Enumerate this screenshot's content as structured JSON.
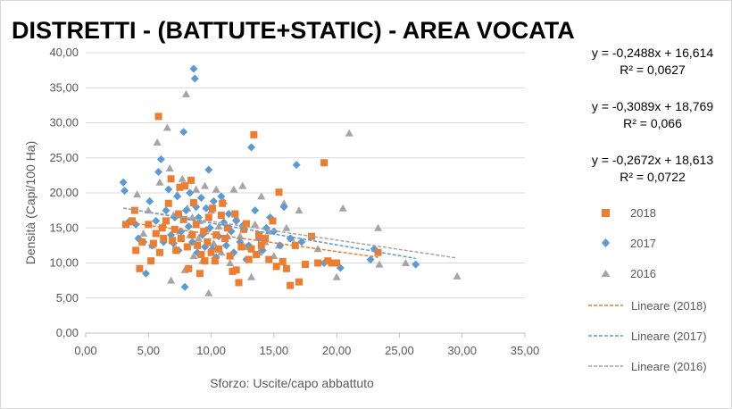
{
  "chart_data": {
    "type": "scatter",
    "title": "DISTRETTI - (BATTUTE+STATIC) - AREA VOCATA",
    "xlabel": "Sforzo: Uscite/capo abbattuto",
    "ylabel": "Densità (Capi/100 Ha)",
    "xlim": [
      0,
      35
    ],
    "ylim": [
      0,
      40
    ],
    "x_ticks": [
      "0,00",
      "5,00",
      "10,00",
      "15,00",
      "20,00",
      "25,00",
      "30,00",
      "35,00"
    ],
    "y_ticks": [
      "0,00",
      "5,00",
      "10,00",
      "15,00",
      "20,00",
      "25,00",
      "30,00",
      "35,00",
      "40,00"
    ],
    "grid": "horizontal",
    "legend_position": "right",
    "equations": [
      {
        "formula": "y = -0,2488x + 16,614",
        "r2": "R² = 0,0627"
      },
      {
        "formula": "y = -0,3089x + 18,769",
        "r2": "R² = 0,066"
      },
      {
        "formula": "y = -0,2672x + 18,613",
        "r2": "R² = 0,0722"
      }
    ],
    "series": [
      {
        "name": "2018",
        "marker": "square",
        "color": "#ed7d31",
        "points": [
          [
            3.2,
            15.5
          ],
          [
            3.7,
            16
          ],
          [
            3.9,
            17.5
          ],
          [
            4.0,
            11.8
          ],
          [
            4.3,
            9.2
          ],
          [
            4.5,
            13
          ],
          [
            5.0,
            15.5
          ],
          [
            5.2,
            10.3
          ],
          [
            5.4,
            12.8
          ],
          [
            5.6,
            14.2
          ],
          [
            5.8,
            30.9
          ],
          [
            5.9,
            11.5
          ],
          [
            6.1,
            15
          ],
          [
            6.2,
            13.5
          ],
          [
            6.4,
            16
          ],
          [
            6.6,
            18.5
          ],
          [
            6.8,
            22
          ],
          [
            6.9,
            13.2
          ],
          [
            7.1,
            14.8
          ],
          [
            7.2,
            11.8
          ],
          [
            7.4,
            17
          ],
          [
            7.5,
            20.8
          ],
          [
            7.6,
            13.5
          ],
          [
            7.8,
            16.2
          ],
          [
            7.9,
            21
          ],
          [
            8.1,
            12.3
          ],
          [
            8.2,
            9.2
          ],
          [
            8.4,
            21.8
          ],
          [
            8.5,
            14
          ],
          [
            8.6,
            18.6
          ],
          [
            8.8,
            15.5
          ],
          [
            8.9,
            12.5
          ],
          [
            9.1,
            8.5
          ],
          [
            9.2,
            11.2
          ],
          [
            9.4,
            14.5
          ],
          [
            9.5,
            10.3
          ],
          [
            9.7,
            13
          ],
          [
            9.8,
            16.5
          ],
          [
            10.0,
            11.5
          ],
          [
            10.1,
            17.8
          ],
          [
            10.3,
            10.3
          ],
          [
            10.4,
            14
          ],
          [
            10.6,
            12
          ],
          [
            10.8,
            16.8
          ],
          [
            10.9,
            18.5
          ],
          [
            11.1,
            13.5
          ],
          [
            11.3,
            15
          ],
          [
            11.5,
            11
          ],
          [
            11.7,
            8.8
          ],
          [
            11.9,
            17
          ],
          [
            12.0,
            9
          ],
          [
            12.2,
            7.2
          ],
          [
            12.4,
            12.3
          ],
          [
            12.6,
            14.8
          ],
          [
            12.8,
            15.6
          ],
          [
            13.0,
            10.5
          ],
          [
            13.2,
            12
          ],
          [
            13.4,
            28.3
          ],
          [
            13.6,
            11.2
          ],
          [
            13.8,
            14
          ],
          [
            14.0,
            12.5
          ],
          [
            14.3,
            13.5
          ],
          [
            14.6,
            10.5
          ],
          [
            14.9,
            16
          ],
          [
            15.2,
            9.5
          ],
          [
            15.4,
            20.1
          ],
          [
            15.7,
            10.2
          ],
          [
            16.0,
            9.2
          ],
          [
            16.3,
            6.8
          ],
          [
            16.7,
            12.5
          ],
          [
            17.0,
            7.3
          ],
          [
            17.5,
            9.8
          ],
          [
            18.0,
            13.8
          ],
          [
            18.5,
            10
          ],
          [
            19.0,
            24.3
          ],
          [
            19.3,
            10.3
          ],
          [
            19.6,
            10
          ],
          [
            20.0,
            10
          ],
          [
            23.3,
            11.5
          ]
        ]
      },
      {
        "name": "2017",
        "marker": "diamond",
        "color": "#5b9bd5",
        "points": [
          [
            3.0,
            21.5
          ],
          [
            3.1,
            20.3
          ],
          [
            3.5,
            16
          ],
          [
            4.0,
            15.5
          ],
          [
            4.2,
            13.5
          ],
          [
            4.6,
            13
          ],
          [
            4.8,
            8.5
          ],
          [
            5.1,
            18.8
          ],
          [
            5.3,
            12.5
          ],
          [
            5.6,
            16
          ],
          [
            5.8,
            23
          ],
          [
            6.0,
            24.8
          ],
          [
            6.2,
            13
          ],
          [
            6.4,
            17.5
          ],
          [
            6.6,
            20.5
          ],
          [
            6.8,
            14
          ],
          [
            7.0,
            12.8
          ],
          [
            7.1,
            16.5
          ],
          [
            7.3,
            19.5
          ],
          [
            7.4,
            11.8
          ],
          [
            7.6,
            14.5
          ],
          [
            7.8,
            28.7
          ],
          [
            7.9,
            6.6
          ],
          [
            8.0,
            17.5
          ],
          [
            8.2,
            15.2
          ],
          [
            8.3,
            20
          ],
          [
            8.5,
            13
          ],
          [
            8.6,
            37.7
          ],
          [
            8.7,
            36.3
          ],
          [
            8.8,
            18
          ],
          [
            8.9,
            11.5
          ],
          [
            9.0,
            16.5
          ],
          [
            9.2,
            19.3
          ],
          [
            9.3,
            14
          ],
          [
            9.5,
            12.3
          ],
          [
            9.6,
            17.8
          ],
          [
            9.8,
            23.3
          ],
          [
            9.9,
            15
          ],
          [
            10.1,
            12
          ],
          [
            10.2,
            18.8
          ],
          [
            10.4,
            10.8
          ],
          [
            10.6,
            13.8
          ],
          [
            10.8,
            19.5
          ],
          [
            11.0,
            15.8
          ],
          [
            11.2,
            12.5
          ],
          [
            11.4,
            17
          ],
          [
            11.6,
            14.5
          ],
          [
            11.8,
            11.5
          ],
          [
            12.0,
            16
          ],
          [
            12.3,
            13
          ],
          [
            12.5,
            15.3
          ],
          [
            12.8,
            10.5
          ],
          [
            13.0,
            12.5
          ],
          [
            13.2,
            26.5
          ],
          [
            13.5,
            17.5
          ],
          [
            13.8,
            13.5
          ],
          [
            14.1,
            11.8
          ],
          [
            14.4,
            15
          ],
          [
            14.7,
            16.5
          ],
          [
            15.0,
            14.5
          ],
          [
            15.5,
            12.5
          ],
          [
            15.8,
            18
          ],
          [
            16.3,
            13.5
          ],
          [
            16.8,
            24
          ],
          [
            17.2,
            13
          ],
          [
            19.0,
            10
          ],
          [
            20.3,
            9.3
          ],
          [
            22.7,
            10.5
          ],
          [
            23.0,
            12
          ],
          [
            26.3,
            9.8
          ]
        ]
      },
      {
        "name": "2016",
        "marker": "triangle",
        "color": "#a5a5a5",
        "points": [
          [
            3.6,
            15.8
          ],
          [
            4.1,
            19.8
          ],
          [
            4.6,
            14.2
          ],
          [
            5.0,
            17.5
          ],
          [
            5.3,
            12.5
          ],
          [
            5.7,
            27.2
          ],
          [
            5.9,
            21.5
          ],
          [
            6.2,
            15.5
          ],
          [
            6.5,
            29.3
          ],
          [
            6.7,
            23.5
          ],
          [
            6.8,
            7.5
          ],
          [
            7.0,
            16.8
          ],
          [
            7.2,
            12
          ],
          [
            7.3,
            19.8
          ],
          [
            7.5,
            14.5
          ],
          [
            7.7,
            22
          ],
          [
            7.9,
            9
          ],
          [
            8.0,
            34.1
          ],
          [
            8.1,
            17.8
          ],
          [
            8.3,
            14
          ],
          [
            8.5,
            16.5
          ],
          [
            8.6,
            11
          ],
          [
            8.8,
            20.5
          ],
          [
            9.0,
            13.5
          ],
          [
            9.1,
            16
          ],
          [
            9.3,
            10.3
          ],
          [
            9.5,
            21
          ],
          [
            9.6,
            14.8
          ],
          [
            9.8,
            5.7
          ],
          [
            10.0,
            17.5
          ],
          [
            10.2,
            12.8
          ],
          [
            10.4,
            20.5
          ],
          [
            10.6,
            15.2
          ],
          [
            10.8,
            11.5
          ],
          [
            11.0,
            18.8
          ],
          [
            11.3,
            13.8
          ],
          [
            11.5,
            10
          ],
          [
            11.8,
            20.5
          ],
          [
            12.0,
            16.5
          ],
          [
            12.3,
            13.8
          ],
          [
            12.5,
            21
          ],
          [
            12.8,
            12.3
          ],
          [
            13.2,
            8
          ],
          [
            13.5,
            15.5
          ],
          [
            13.8,
            11.5
          ],
          [
            14.0,
            19.5
          ],
          [
            14.3,
            13
          ],
          [
            14.6,
            14.5
          ],
          [
            15.0,
            11
          ],
          [
            15.4,
            12.5
          ],
          [
            15.8,
            18.5
          ],
          [
            16.0,
            15
          ],
          [
            16.4,
            13.5
          ],
          [
            17.0,
            17.5
          ],
          [
            18.5,
            12
          ],
          [
            20.0,
            8
          ],
          [
            20.5,
            17.8
          ],
          [
            21.0,
            28.5
          ],
          [
            23.3,
            15
          ],
          [
            23.4,
            9.8
          ],
          [
            25.5,
            10
          ],
          [
            29.6,
            8.1
          ]
        ]
      }
    ],
    "trendlines": [
      {
        "name": "Lineare (2018)",
        "slope": -0.2488,
        "intercept": 16.614,
        "x_range": [
          3.2,
          23.3
        ],
        "color": "#ed7d31"
      },
      {
        "name": "Lineare (2017)",
        "slope": -0.3089,
        "intercept": 18.769,
        "x_range": [
          3.0,
          26.3
        ],
        "color": "#5b9bd5"
      },
      {
        "name": "Lineare (2016)",
        "slope": -0.2672,
        "intercept": 18.613,
        "x_range": [
          3.0,
          29.6
        ],
        "color": "#a5a5a5"
      }
    ]
  }
}
